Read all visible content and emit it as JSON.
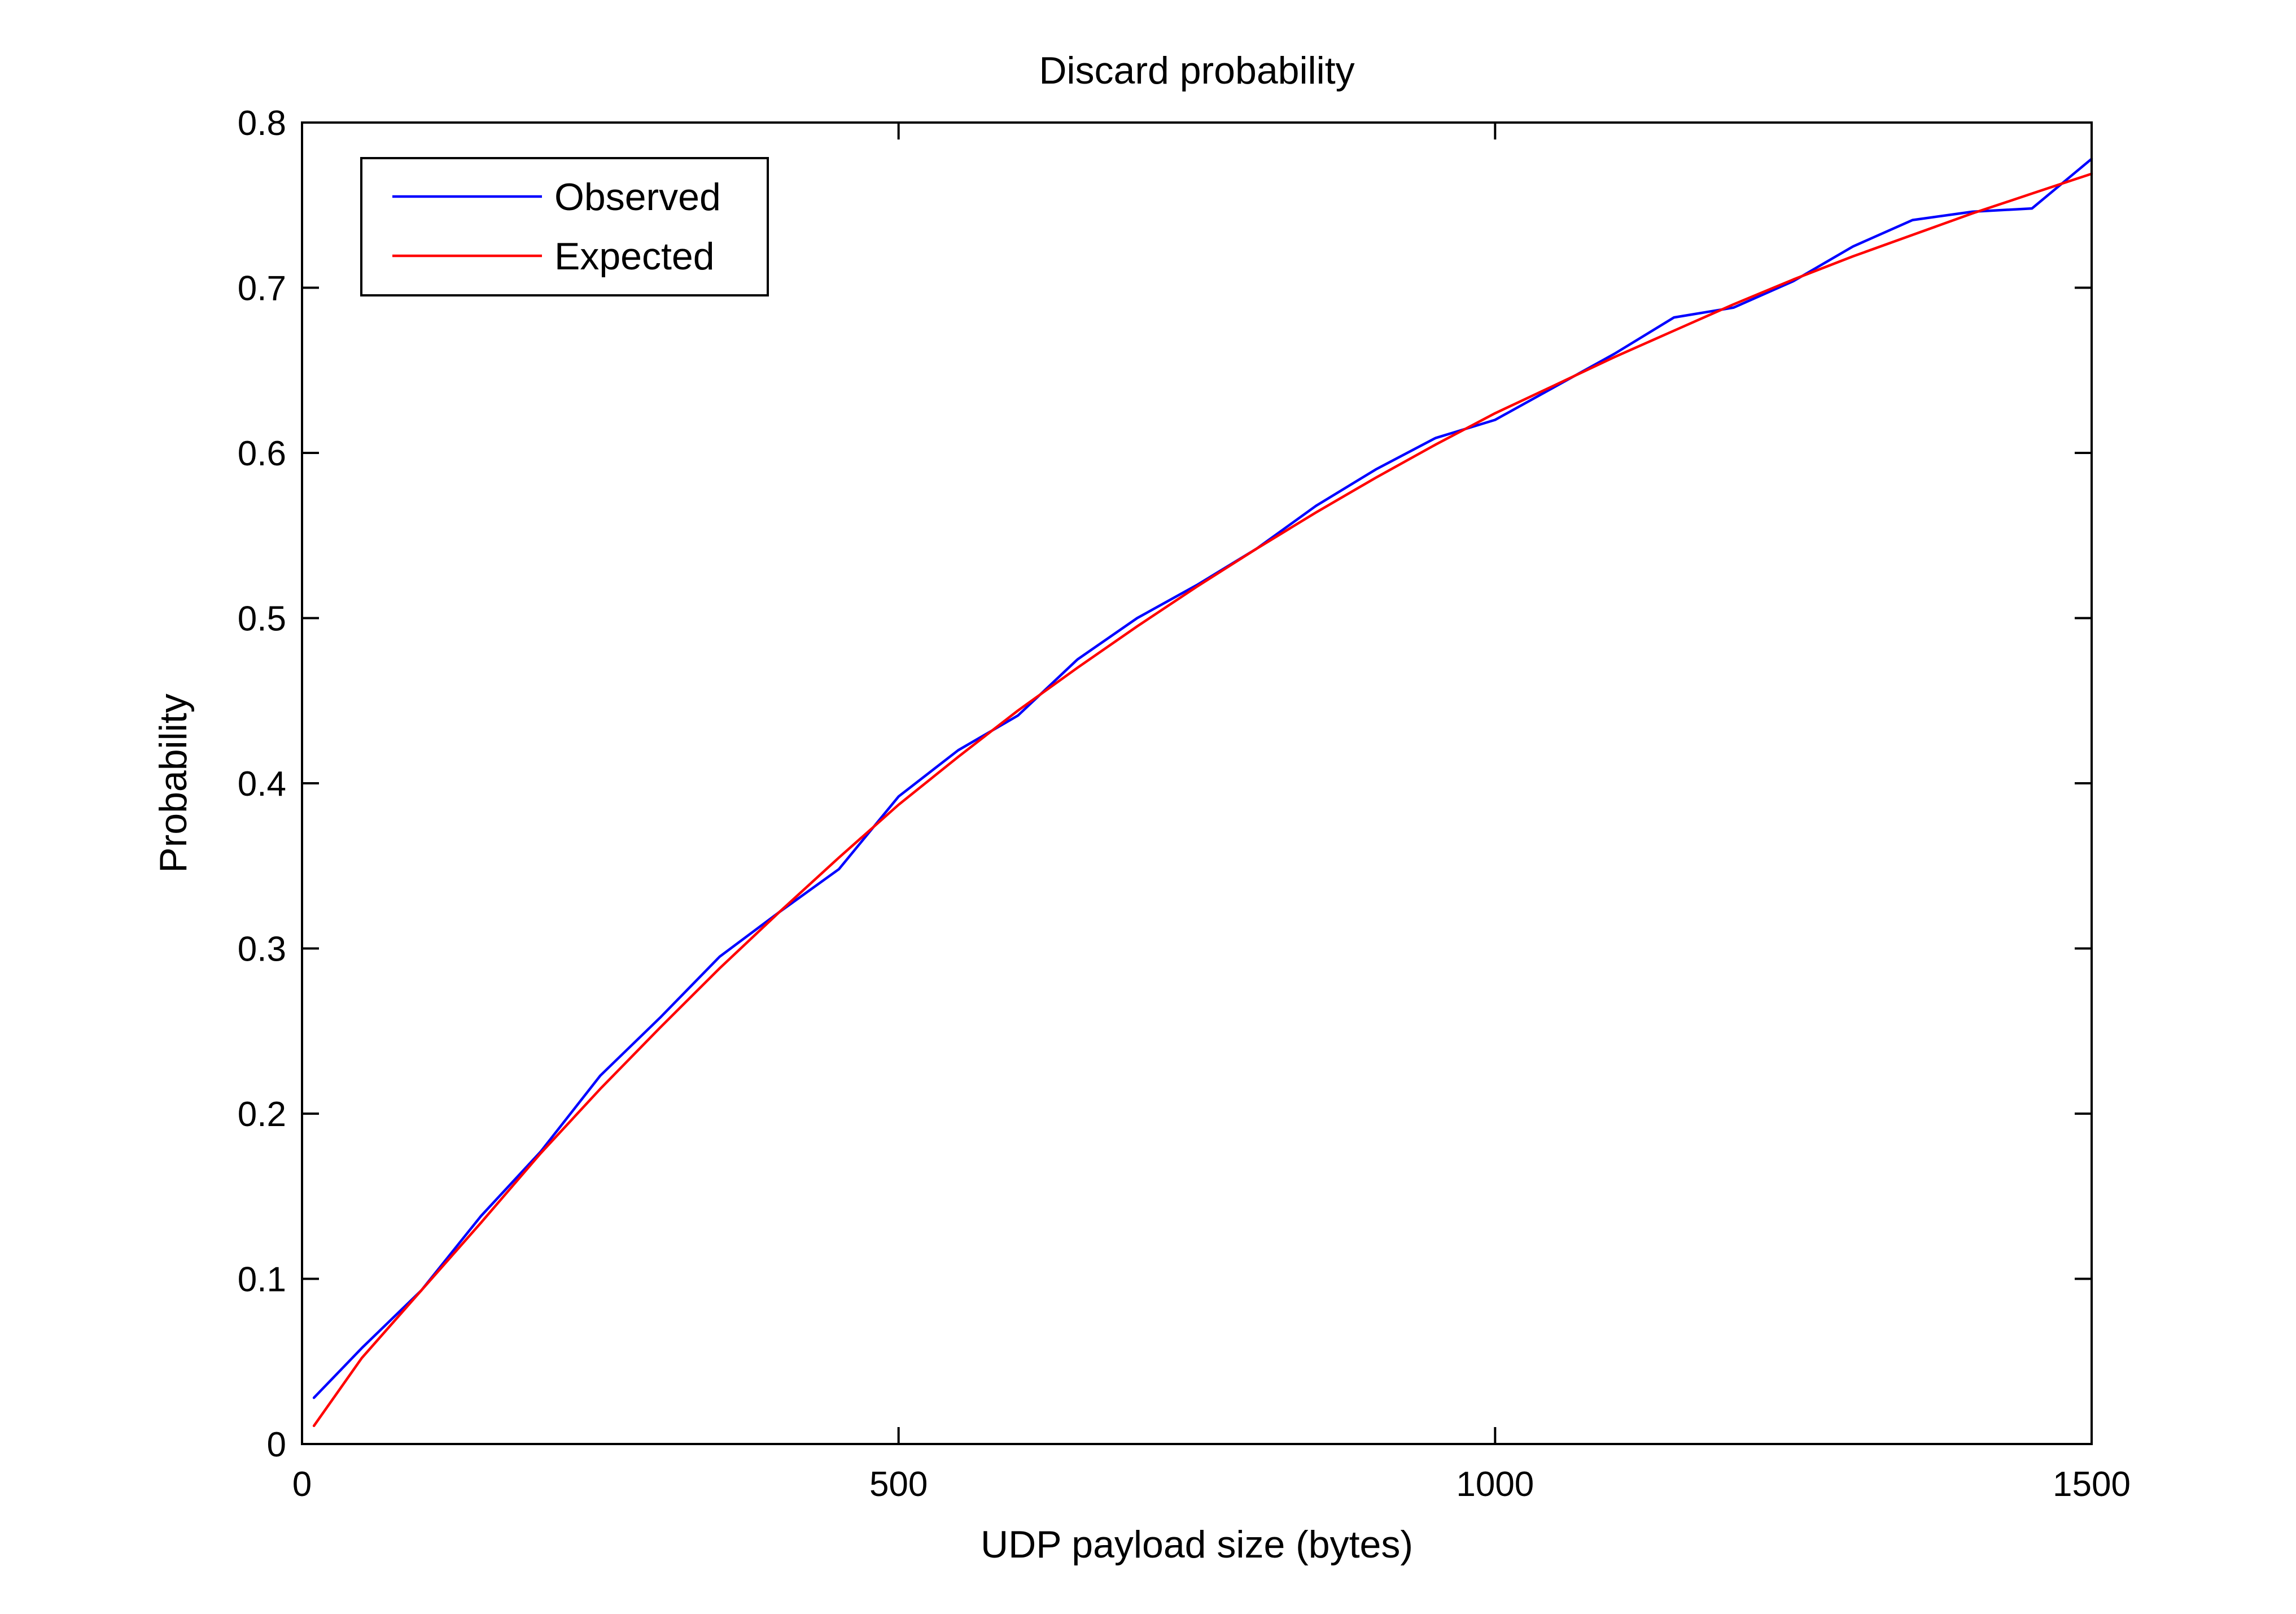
{
  "chart_data": {
    "type": "line",
    "title": "Discard probability",
    "xlabel": "UDP payload size (bytes)",
    "ylabel": "Probability",
    "xlim": [
      0,
      1500
    ],
    "ylim": [
      0,
      0.8
    ],
    "xticks": [
      0,
      500,
      1000,
      1500
    ],
    "xtick_labels": [
      "0",
      "500",
      "1000",
      "1500"
    ],
    "yticks": [
      0,
      0.1,
      0.2,
      0.3,
      0.4,
      0.5,
      0.6,
      0.7,
      0.8
    ],
    "ytick_labels": [
      "0",
      "0.1",
      "0.2",
      "0.3",
      "0.4",
      "0.5",
      "0.6",
      "0.7",
      "0.8"
    ],
    "grid": false,
    "legend_position": "top-left",
    "series": [
      {
        "name": "Observed",
        "color": "#0000ff",
        "x": [
          10,
          50,
          100,
          150,
          200,
          250,
          300,
          350,
          400,
          450,
          500,
          550,
          600,
          650,
          700,
          750,
          800,
          850,
          900,
          950,
          1000,
          1050,
          1100,
          1150,
          1200,
          1250,
          1300,
          1350,
          1400,
          1450,
          1500
        ],
        "y": [
          0.028,
          0.058,
          0.093,
          0.138,
          0.177,
          0.223,
          0.258,
          0.295,
          0.322,
          0.348,
          0.392,
          0.42,
          0.441,
          0.475,
          0.5,
          0.52,
          0.542,
          0.568,
          0.59,
          0.609,
          0.62,
          0.64,
          0.66,
          0.682,
          0.688,
          0.704,
          0.725,
          0.741,
          0.746,
          0.748,
          0.778
        ]
      },
      {
        "name": "Expected",
        "color": "#ff0000",
        "x": [
          10,
          50,
          100,
          150,
          200,
          250,
          300,
          350,
          400,
          450,
          500,
          550,
          600,
          650,
          700,
          750,
          800,
          850,
          900,
          950,
          1000,
          1050,
          1100,
          1150,
          1200,
          1250,
          1300,
          1350,
          1400,
          1450,
          1500
        ],
        "y": [
          0.011,
          0.052,
          0.093,
          0.134,
          0.176,
          0.215,
          0.252,
          0.288,
          0.322,
          0.355,
          0.387,
          0.416,
          0.444,
          0.47,
          0.495,
          0.519,
          0.542,
          0.564,
          0.585,
          0.605,
          0.624,
          0.641,
          0.658,
          0.674,
          0.69,
          0.705,
          0.719,
          0.732,
          0.745,
          0.757,
          0.769
        ]
      }
    ]
  }
}
